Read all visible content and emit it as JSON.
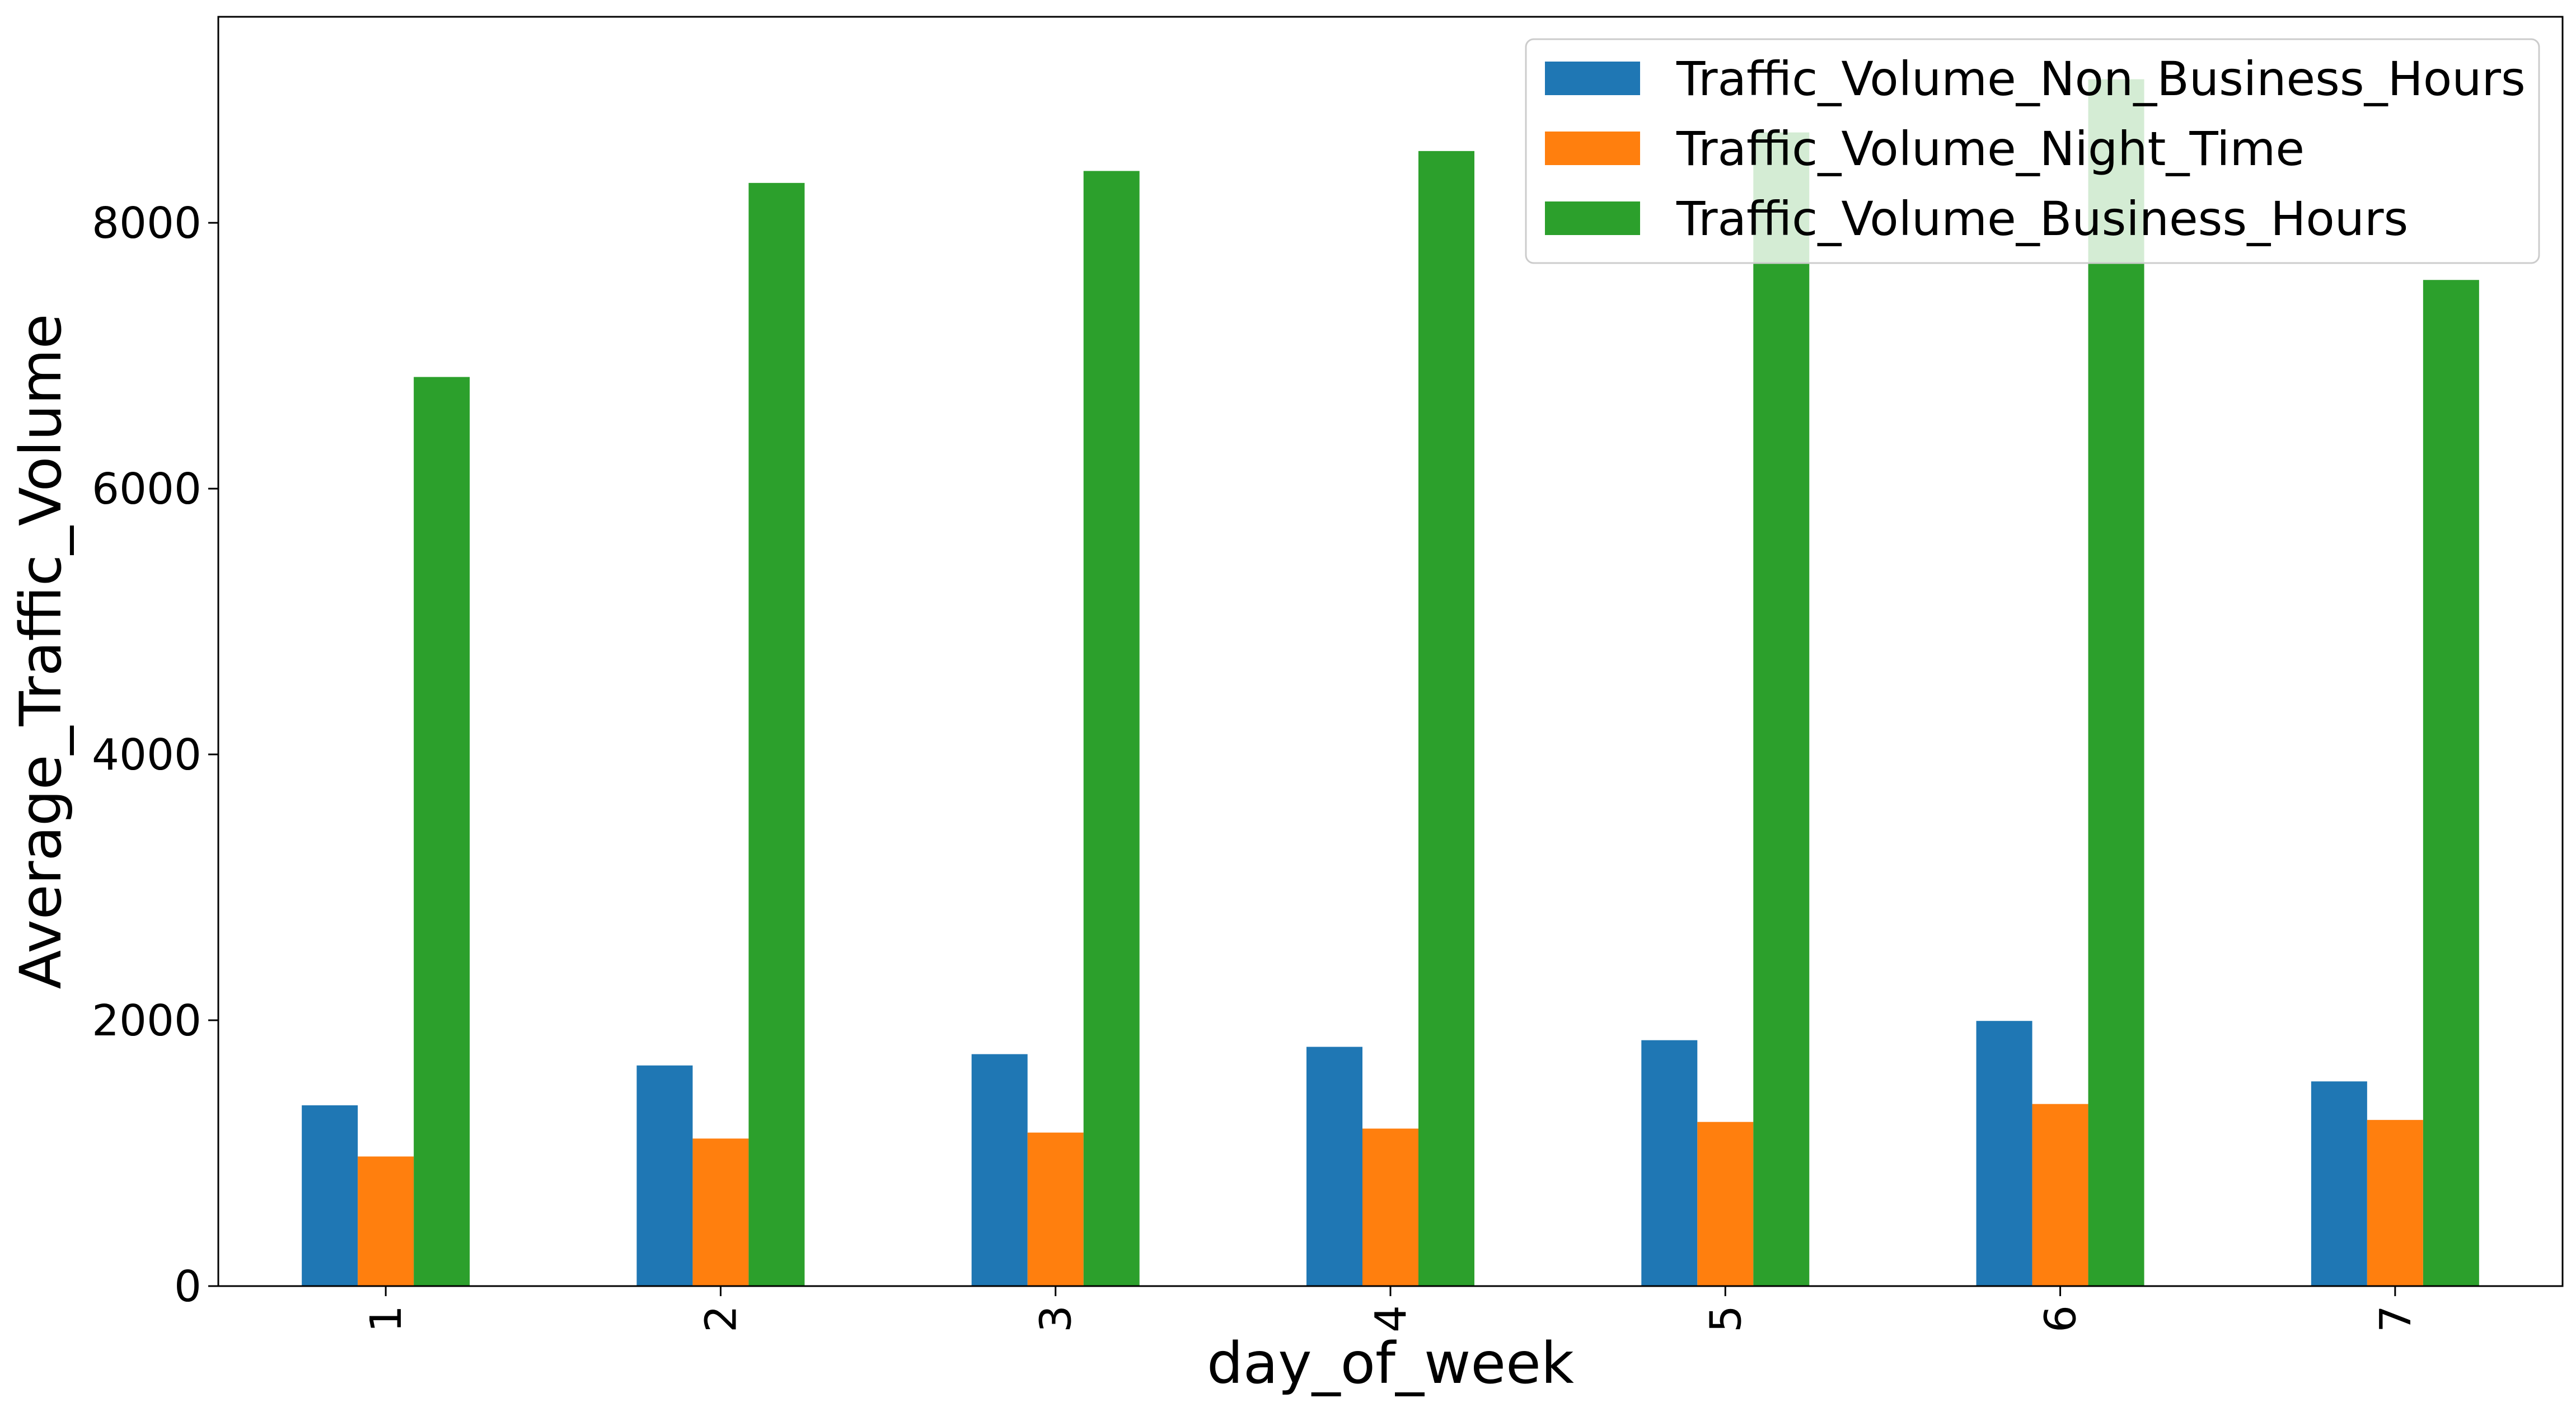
{
  "chart_data": {
    "type": "bar",
    "title": "",
    "xlabel": "day_of_week",
    "ylabel": "Average_Traffic_Volume",
    "categories": [
      "1",
      "2",
      "3",
      "4",
      "5",
      "6",
      "7"
    ],
    "ylim": [
      0,
      9550
    ],
    "yticks": [
      0,
      2000,
      4000,
      6000,
      8000
    ],
    "xtick_rotation": 90,
    "grid": false,
    "legend_position": "top-right",
    "series": [
      {
        "name": "Traffic_Volume_Non_Business_Hours",
        "color": "#1f77b4",
        "values": [
          1360,
          1660,
          1745,
          1800,
          1850,
          1995,
          1540
        ]
      },
      {
        "name": "Traffic_Volume_Night_Time",
        "color": "#ff7f0e",
        "values": [
          975,
          1110,
          1155,
          1185,
          1235,
          1370,
          1250
        ]
      },
      {
        "name": "Traffic_Volume_Business_Hours",
        "color": "#2ca02c",
        "values": [
          6840,
          8300,
          8390,
          8540,
          8680,
          9080,
          7570
        ]
      }
    ]
  }
}
